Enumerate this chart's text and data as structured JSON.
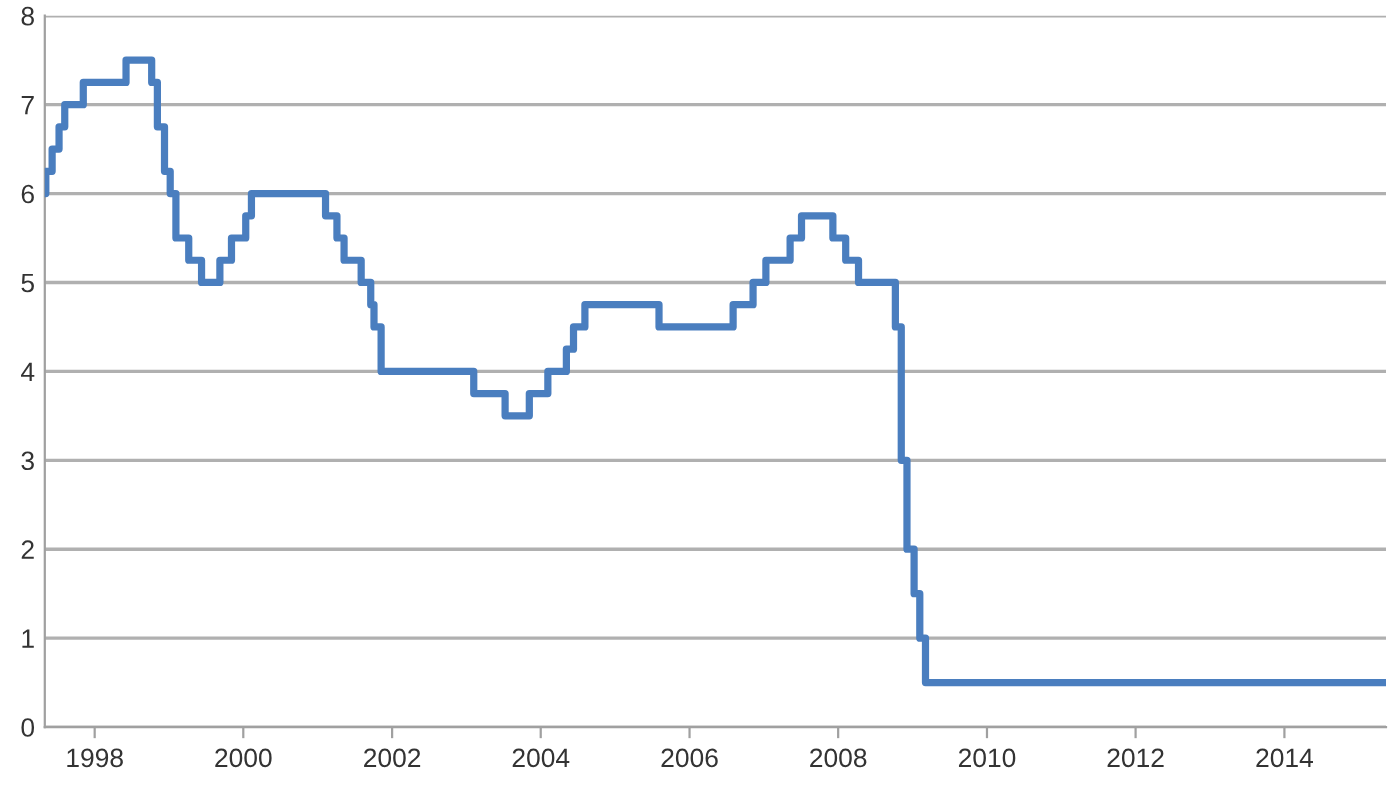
{
  "chart_data": {
    "type": "step",
    "x": [
      "1997-05-01",
      "1997-05-06",
      "1997-06-06",
      "1997-07-10",
      "1997-08-07",
      "1997-11-06",
      "1998-06-04",
      "1998-10-08",
      "1998-11-05",
      "1998-12-10",
      "1999-01-07",
      "1999-02-04",
      "1999-04-08",
      "1999-06-10",
      "1999-09-08",
      "1999-11-04",
      "2000-01-13",
      "2000-02-10",
      "2001-02-08",
      "2001-04-05",
      "2001-05-10",
      "2001-08-02",
      "2001-09-18",
      "2001-10-04",
      "2001-11-08",
      "2003-02-06",
      "2003-07-10",
      "2003-11-06",
      "2004-02-05",
      "2004-05-06",
      "2004-06-10",
      "2004-08-05",
      "2005-08-04",
      "2006-08-03",
      "2006-11-09",
      "2007-01-11",
      "2007-05-10",
      "2007-07-05",
      "2007-12-06",
      "2008-02-07",
      "2008-04-10",
      "2008-10-08",
      "2008-11-06",
      "2008-12-04",
      "2009-01-08",
      "2009-02-05",
      "2009-03-05",
      "2015-05-15"
    ],
    "series": [
      {
        "color": "#4a7ebf",
        "values": [
          6.0,
          6.25,
          6.5,
          6.75,
          7.0,
          7.25,
          7.5,
          7.25,
          6.75,
          6.25,
          6.0,
          5.5,
          5.25,
          5.0,
          5.25,
          5.5,
          5.75,
          6.0,
          5.75,
          5.5,
          5.25,
          5.0,
          4.75,
          4.5,
          4.0,
          3.75,
          3.5,
          3.75,
          4.0,
          4.25,
          4.5,
          4.75,
          4.5,
          4.75,
          5.0,
          5.25,
          5.5,
          5.75,
          5.5,
          5.25,
          5.0,
          4.5,
          3.0,
          2.0,
          1.5,
          1.0,
          0.5,
          0.5
        ]
      }
    ],
    "xlim": [
      "1997-05-01",
      "2015-05-15"
    ],
    "xticks": [
      {
        "value": "1998-01-01",
        "label": "1998"
      },
      {
        "value": "2000-01-01",
        "label": "2000"
      },
      {
        "value": "2002-01-01",
        "label": "2002"
      },
      {
        "value": "2004-01-01",
        "label": "2004"
      },
      {
        "value": "2006-01-01",
        "label": "2006"
      },
      {
        "value": "2008-01-01",
        "label": "2008"
      },
      {
        "value": "2010-01-01",
        "label": "2010"
      },
      {
        "value": "2012-01-01",
        "label": "2012"
      },
      {
        "value": "2014-01-01",
        "label": "2014"
      }
    ],
    "ylim": [
      0,
      8
    ],
    "yticks": [
      0,
      1,
      2,
      3,
      4,
      5,
      6,
      7,
      8
    ],
    "grid": "y",
    "marker": "none",
    "line_style": "solid"
  }
}
